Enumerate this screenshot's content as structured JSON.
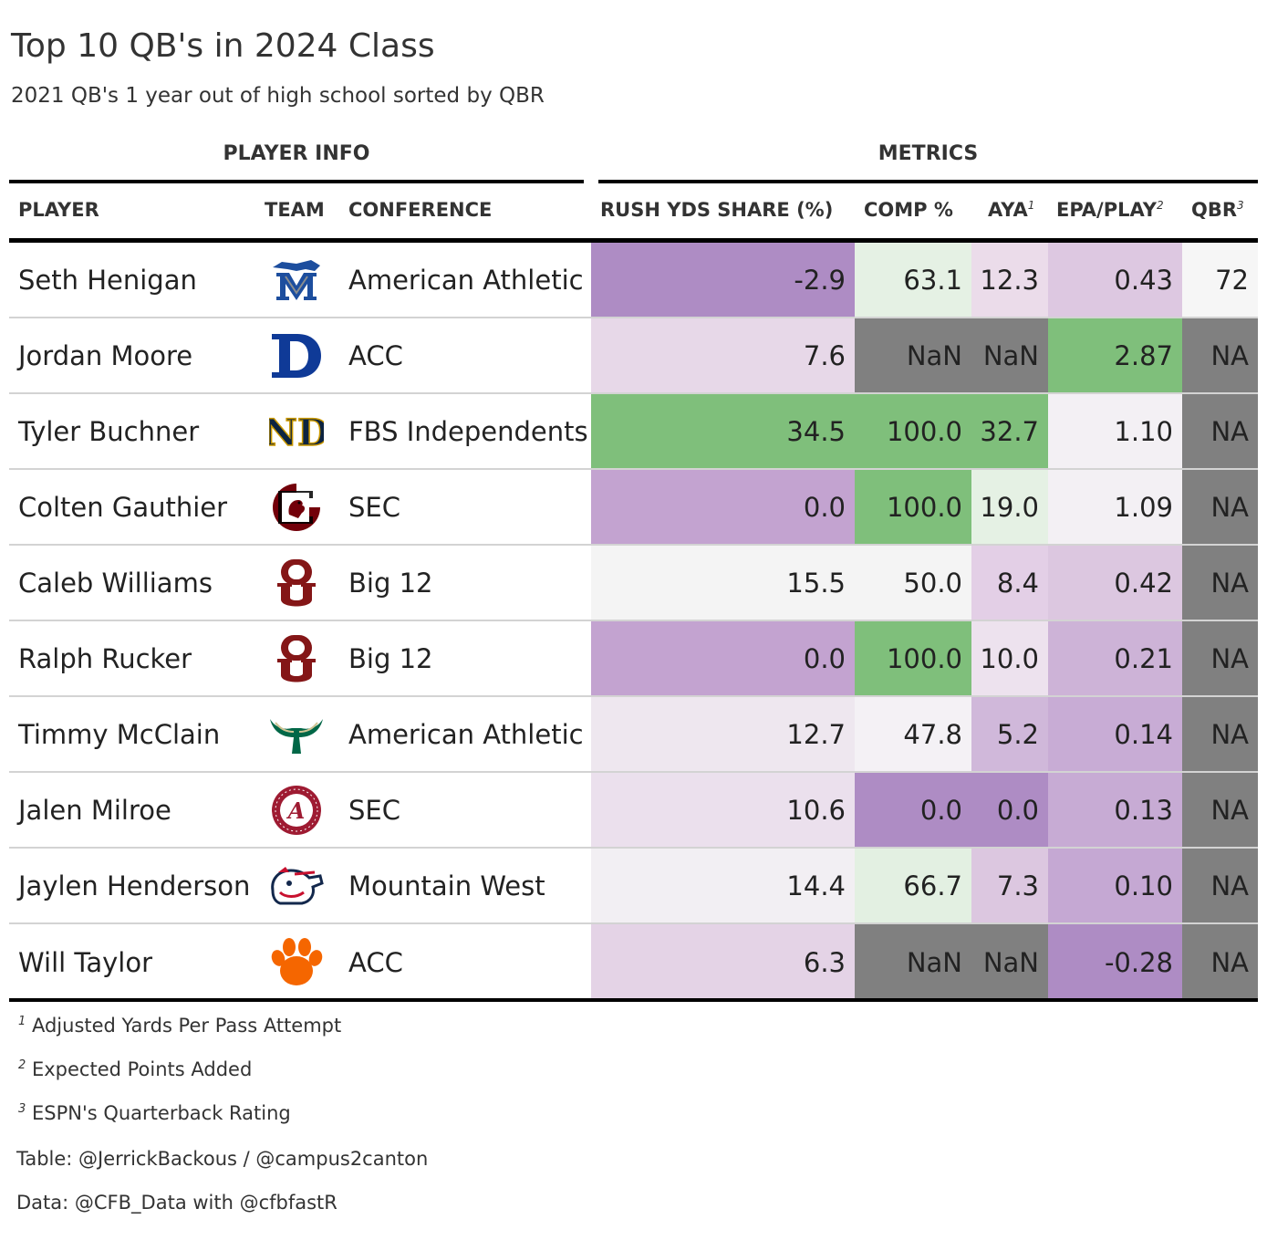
{
  "title": "Top 10 QB's in 2024 Class",
  "subtitle": "2021 QB's 1 year out of high school sorted by QBR",
  "spanners": {
    "player_info": "PLAYER INFO",
    "metrics": "METRICS"
  },
  "columns": {
    "player": "PLAYER",
    "team": "TEAM",
    "conference": "CONFERENCE",
    "rush": "RUSH YDS SHARE (%)",
    "comp": "COMP %",
    "aya": "AYA",
    "aya_mark": "1",
    "epa": "EPA/PLAY",
    "epa_mark": "2",
    "qbr": "QBR",
    "qbr_mark": "3"
  },
  "chart_data": {
    "type": "table",
    "title": "Top 10 QB's in 2024 Class",
    "subtitle": "2021 QB's 1 year out of high school sorted by QBR",
    "rows": [
      {
        "player": "Seth Henigan",
        "team_logo": "memphis-tigers-logo",
        "conference": "American Athletic",
        "rush": "-2.9",
        "comp": "63.1",
        "aya": "12.3",
        "epa": "0.43",
        "qbr": "72",
        "colors": {
          "rush": "#ae8cc4",
          "comp": "#e5f1e4",
          "aya": "#ebdcea",
          "epa": "#ddc8e1",
          "qbr": "#f6f6f6"
        }
      },
      {
        "player": "Jordan Moore",
        "team_logo": "duke-d-logo",
        "conference": "ACC",
        "rush": "7.6",
        "comp": "NaN",
        "aya": "NaN",
        "epa": "2.87",
        "qbr": "NA",
        "colors": {
          "rush": "#e7d8e8",
          "comp": "#808080",
          "aya": "#808080",
          "epa": "#7fbf7b",
          "qbr": "#808080"
        }
      },
      {
        "player": "Tyler Buchner",
        "team_logo": "notre-dame-nd-logo",
        "conference": "FBS Independents",
        "rush": "34.5",
        "comp": "100.0",
        "aya": "32.7",
        "epa": "1.10",
        "qbr": "NA",
        "colors": {
          "rush": "#7fbf7b",
          "comp": "#7fbf7b",
          "aya": "#7fbf7b",
          "epa": "#f3f0f4",
          "qbr": "#808080"
        }
      },
      {
        "player": "Colten Gauthier",
        "team_logo": "south-carolina-gamecock-logo",
        "conference": "SEC",
        "rush": "0.0",
        "comp": "100.0",
        "aya": "19.0",
        "epa": "1.09",
        "qbr": "NA",
        "colors": {
          "rush": "#c3a3d0",
          "comp": "#7fbf7b",
          "aya": "#e5f1e4",
          "epa": "#f3f0f4",
          "qbr": "#808080"
        }
      },
      {
        "player": "Caleb Williams",
        "team_logo": "oklahoma-ou-logo",
        "conference": "Big 12",
        "rush": "15.5",
        "comp": "50.0",
        "aya": "8.4",
        "epa": "0.42",
        "qbr": "NA",
        "colors": {
          "rush": "#f4f4f4",
          "comp": "#f4f4f4",
          "aya": "#e3cfe6",
          "epa": "#dcc7e0",
          "qbr": "#808080"
        }
      },
      {
        "player": "Ralph Rucker",
        "team_logo": "oklahoma-ou-logo",
        "conference": "Big 12",
        "rush": "0.0",
        "comp": "100.0",
        "aya": "10.0",
        "epa": "0.21",
        "qbr": "NA",
        "colors": {
          "rush": "#c3a3d0",
          "comp": "#7fbf7b",
          "aya": "#ede2ee",
          "epa": "#cdb3d7",
          "qbr": "#808080"
        }
      },
      {
        "player": "Timmy McClain",
        "team_logo": "usf-bulls-horns-logo",
        "conference": "American Athletic",
        "rush": "12.7",
        "comp": "47.8",
        "aya": "5.2",
        "epa": "0.14",
        "qbr": "NA",
        "colors": {
          "rush": "#eee7ef",
          "comp": "#f4f1f5",
          "aya": "#d0b8da",
          "epa": "#c8acd5",
          "qbr": "#808080"
        }
      },
      {
        "player": "Jalen Milroe",
        "team_logo": "alabama-a-logo",
        "conference": "SEC",
        "rush": "10.6",
        "comp": "0.0",
        "aya": "0.0",
        "epa": "0.13",
        "qbr": "NA",
        "colors": {
          "rush": "#ebe0ed",
          "comp": "#ae8cc4",
          "aya": "#ae8cc4",
          "epa": "#c7abd4",
          "qbr": "#808080"
        }
      },
      {
        "player": "Jaylen Henderson",
        "team_logo": "fresno-state-bulldog-logo",
        "conference": "Mountain West",
        "rush": "14.4",
        "comp": "66.7",
        "aya": "7.3",
        "epa": "0.10",
        "qbr": "NA",
        "colors": {
          "rush": "#f2eff3",
          "comp": "#e3f0e2",
          "aya": "#dcc7e0",
          "epa": "#c5a8d3",
          "qbr": "#808080"
        }
      },
      {
        "player": "Will Taylor",
        "team_logo": "clemson-paw-logo",
        "conference": "ACC",
        "rush": "6.3",
        "comp": "NaN",
        "aya": "NaN",
        "epa": "-0.28",
        "qbr": "NA",
        "colors": {
          "rush": "#e4d3e6",
          "comp": "#808080",
          "aya": "#808080",
          "epa": "#ae8cc4",
          "qbr": "#808080"
        }
      }
    ]
  },
  "footnotes": [
    {
      "mark": "1",
      "text": "Adjusted Yards Per Pass Attempt"
    },
    {
      "mark": "2",
      "text": "Expected Points Added"
    },
    {
      "mark": "3",
      "text": "ESPN's Quarterback Rating"
    }
  ],
  "source": {
    "table": "Table: @JerrickBackous / @campus2canton",
    "data": "Data: @CFB_Data with @cfbfastR"
  },
  "logo_colors": {
    "memphis": "#1d4e9e",
    "duke": "#0f3a97",
    "notre_dame": "#0c2340",
    "notre_dame_gold": "#c99700",
    "south_carolina": "#73000a",
    "oklahoma": "#841617",
    "usf": "#006747",
    "usf_gold": "#cfc493",
    "alabama": "#9e1b32",
    "fresno": "#c8102e",
    "fresno_blue": "#13284c",
    "clemson": "#f56600"
  }
}
